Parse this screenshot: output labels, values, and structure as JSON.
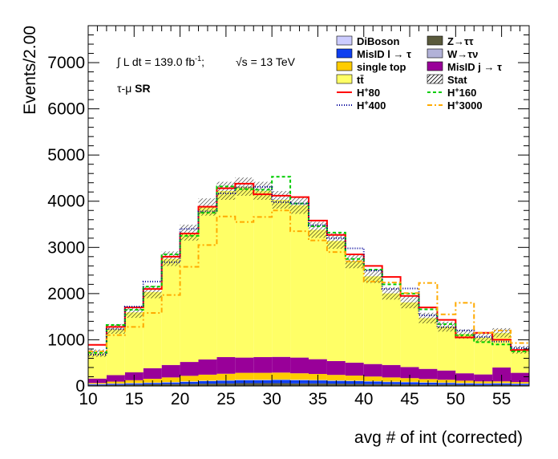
{
  "chart_data": {
    "type": "bar",
    "stacked": true,
    "xlabel": "avg # of int (corrected)",
    "ylabel": "Events/2.00",
    "xlim": [
      10,
      58
    ],
    "ylim": [
      0,
      7800
    ],
    "bin_width": 2,
    "x_ticks": [
      10,
      15,
      20,
      25,
      30,
      35,
      40,
      45,
      50,
      55
    ],
    "y_ticks": [
      0,
      1000,
      2000,
      3000,
      4000,
      5000,
      6000,
      7000
    ],
    "bin_edges": [
      10,
      12,
      14,
      16,
      18,
      20,
      22,
      24,
      26,
      28,
      30,
      32,
      34,
      36,
      38,
      40,
      42,
      44,
      46,
      48,
      50,
      52,
      54,
      56,
      58
    ],
    "annotations": {
      "lumi_prefix": "∫ L dt = 139.0 fb",
      "lumi_sup": "-1",
      "lumi_suffix": ";",
      "energy": "√s = 13 TeV",
      "region_prefix": "τ-μ",
      "region_bold": "SR"
    },
    "stack": [
      {
        "name": "Z→ττ",
        "color": "#5a5a3c",
        "values": [
          20,
          25,
          30,
          35,
          40,
          45,
          50,
          55,
          60,
          60,
          60,
          55,
          55,
          50,
          45,
          40,
          40,
          35,
          30,
          30,
          25,
          20,
          25,
          20
        ]
      },
      {
        "name": "MisID l → τ",
        "color": "#0f3ff0",
        "values": [
          15,
          20,
          25,
          30,
          35,
          45,
          55,
          60,
          65,
          65,
          70,
          70,
          65,
          60,
          60,
          55,
          45,
          45,
          40,
          35,
          30,
          30,
          30,
          25
        ]
      },
      {
        "name": "DiBoson",
        "color": "#ccccff",
        "values": [
          5,
          5,
          5,
          5,
          5,
          5,
          5,
          5,
          5,
          5,
          5,
          5,
          5,
          5,
          5,
          5,
          5,
          5,
          5,
          5,
          5,
          5,
          5,
          5
        ]
      },
      {
        "name": "W→τν",
        "color": "#b2b2d8",
        "values": [
          5,
          5,
          5,
          5,
          5,
          5,
          5,
          5,
          5,
          5,
          5,
          5,
          5,
          5,
          5,
          5,
          5,
          5,
          5,
          5,
          5,
          5,
          5,
          5
        ]
      },
      {
        "name": "single top",
        "color": "#ffcc00",
        "values": [
          20,
          40,
          60,
          80,
          100,
          120,
          130,
          140,
          150,
          150,
          150,
          140,
          130,
          120,
          110,
          100,
          90,
          80,
          70,
          60,
          50,
          40,
          35,
          30
        ]
      },
      {
        "name": "MisID j → τ",
        "color": "#990099",
        "values": [
          95,
          140,
          170,
          230,
          270,
          300,
          330,
          360,
          330,
          340,
          340,
          340,
          320,
          300,
          280,
          270,
          270,
          240,
          220,
          200,
          160,
          150,
          300,
          200
        ]
      },
      {
        "name": "tt̄",
        "color": "#ffff66",
        "values": [
          550,
          1000,
          1300,
          1650,
          2300,
          2800,
          3300,
          3600,
          3700,
          3600,
          3400,
          3300,
          2800,
          2600,
          2200,
          1900,
          1550,
          1400,
          1100,
          950,
          850,
          800,
          750,
          500
        ]
      }
    ],
    "signals": [
      {
        "name": "H+80",
        "color": "#ff0000",
        "dash": "",
        "values": [
          890,
          1280,
          1700,
          2100,
          2800,
          3300,
          3880,
          4280,
          4380,
          4150,
          4120,
          4090,
          3580,
          3270,
          2850,
          2600,
          2360,
          1950,
          1700,
          1430,
          1050,
          1150,
          1000,
          780
        ]
      },
      {
        "name": "H+160",
        "color": "#00cc00",
        "dash": "4,3",
        "values": [
          720,
          1320,
          1650,
          2150,
          2850,
          3250,
          3750,
          4320,
          4260,
          4250,
          4530,
          3950,
          3460,
          3320,
          2750,
          2520,
          2200,
          2000,
          1660,
          1340,
          1100,
          950,
          900,
          750
        ]
      },
      {
        "name": "H+400",
        "color": "#000099",
        "dash": "1,2",
        "values": [
          680,
          1230,
          1720,
          2260,
          2680,
          3400,
          3780,
          4170,
          4300,
          4310,
          3980,
          3950,
          3480,
          3200,
          2980,
          2500,
          2100,
          2110,
          1530,
          1270,
          1200,
          1060,
          960,
          820
        ]
      },
      {
        "name": "H+3000",
        "color": "#ffaa00",
        "dash": "6,3,2,3",
        "values": [
          750,
          1100,
          1280,
          1580,
          1970,
          2580,
          3050,
          3670,
          3550,
          3660,
          3800,
          3350,
          3150,
          2900,
          2700,
          2260,
          2240,
          2010,
          2230,
          1550,
          1800,
          1150,
          1200,
          930
        ]
      }
    ],
    "legend": {
      "position": "top-right",
      "entries": [
        {
          "label": "DiBoson",
          "kind": "fill",
          "color": "#ccccff"
        },
        {
          "label": "Z→ττ",
          "kind": "fill",
          "color": "#5a5a3c"
        },
        {
          "label": "MisID l → τ",
          "kind": "fill",
          "color": "#0f3ff0"
        },
        {
          "label": "W→τν",
          "kind": "fill",
          "color": "#b2b2d8"
        },
        {
          "label": "single top",
          "kind": "fill",
          "color": "#ffcc00"
        },
        {
          "label": "MisID j → τ",
          "kind": "fill",
          "color": "#990099"
        },
        {
          "label": "tt̄",
          "kind": "fill",
          "color": "#ffff66"
        },
        {
          "label": "Stat",
          "kind": "hatch",
          "color": "#000000"
        },
        {
          "label": "H",
          "sup": "+",
          "suffix": "80",
          "kind": "line",
          "color": "#ff0000",
          "dash": ""
        },
        {
          "label": "H",
          "sup": "+",
          "suffix": "160",
          "kind": "line",
          "color": "#00cc00",
          "dash": "4,3"
        },
        {
          "label": "H",
          "sup": "+",
          "suffix": "400",
          "kind": "line",
          "color": "#000099",
          "dash": "1,2"
        },
        {
          "label": "H",
          "sup": "+",
          "suffix": "3000",
          "kind": "line",
          "color": "#ffaa00",
          "dash": "6,3,2,3"
        }
      ]
    }
  }
}
